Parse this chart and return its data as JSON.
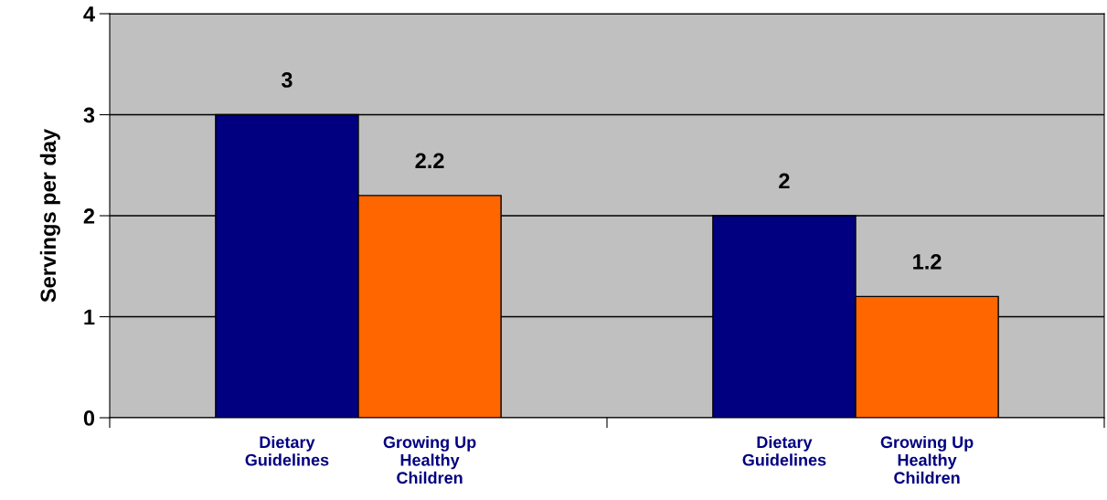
{
  "chart_data": {
    "type": "bar",
    "ylabel": "Servings per day",
    "categories": [
      null,
      null
    ],
    "series": [
      {
        "name": "Dietary\nGuidelines",
        "color": "#000080",
        "values": [
          3,
          2
        ]
      },
      {
        "name": "Growing Up\nHealthy\nChildren",
        "color": "#ff6600",
        "values": [
          2.2,
          1.2
        ]
      }
    ],
    "ylim": [
      0,
      4
    ],
    "yticks": [
      0,
      1,
      2,
      3,
      4
    ],
    "grid": "y",
    "data_labels": true,
    "legend": false
  }
}
